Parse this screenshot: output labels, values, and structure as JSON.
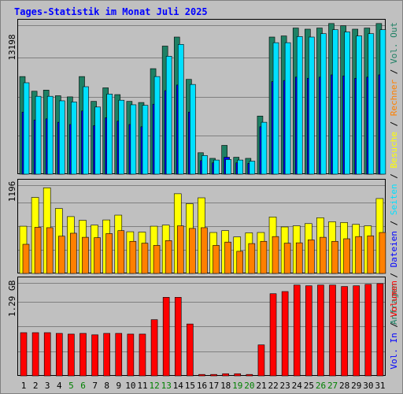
{
  "title": "Tages-Statistik im Monat Juli 2025",
  "colors": {
    "anfragen": "#1e8064",
    "dateien": "#0000ff",
    "seiten": "#00e0ff",
    "besuche": "#ffff00",
    "rechner": "#ff8000",
    "volumen": "#ff0000",
    "weekday": "#000000",
    "weekend": "#008000"
  },
  "chart_data": [
    {
      "type": "bar",
      "name": "requests",
      "ymax_label": "13198",
      "ymax": 13198,
      "legend": [
        "Anfragen",
        "Dateien",
        "Seiten"
      ],
      "categories": [
        "1",
        "2",
        "3",
        "4",
        "5",
        "6",
        "7",
        "8",
        "9",
        "10",
        "11",
        "12",
        "13",
        "14",
        "15",
        "16",
        "17",
        "18",
        "19",
        "20",
        "21",
        "22",
        "23",
        "24",
        "25",
        "26",
        "27",
        "28",
        "29",
        "30",
        "31"
      ],
      "series": [
        {
          "name": "Anfragen",
          "values": [
            8650,
            7350,
            7450,
            6950,
            6850,
            8650,
            6450,
            7650,
            7050,
            6450,
            6350,
            9350,
            11350,
            12150,
            8400,
            1900,
            1400,
            2550,
            1500,
            1400,
            5150,
            12150,
            12250,
            12950,
            12850,
            12950,
            13350,
            13150,
            12850,
            12950,
            13350
          ]
        },
        {
          "name": "Dateien",
          "values": [
            5500,
            4800,
            4900,
            4600,
            4400,
            5600,
            4300,
            5000,
            4700,
            4400,
            4200,
            6200,
            7400,
            7900,
            5500,
            1200,
            1000,
            1500,
            1000,
            950,
            4200,
            8200,
            8300,
            8600,
            8500,
            8600,
            8800,
            8700,
            8500,
            8600,
            8800
          ]
        },
        {
          "name": "Seiten",
          "values": [
            8100,
            6900,
            6900,
            6500,
            6400,
            7750,
            5950,
            7100,
            6550,
            6150,
            6100,
            8650,
            10450,
            11500,
            7950,
            1650,
            1250,
            1300,
            1250,
            1150,
            4600,
            11650,
            11650,
            12200,
            12150,
            12450,
            12800,
            12600,
            12250,
            12450,
            12800
          ]
        }
      ]
    },
    {
      "type": "bar",
      "name": "visits",
      "ymax_label": "1196",
      "ymax": 1196,
      "legend": [
        "Besuche",
        "Rechner",
        "Vol. Out"
      ],
      "categories": [
        "1",
        "2",
        "3",
        "4",
        "5",
        "6",
        "7",
        "8",
        "9",
        "10",
        "11",
        "12",
        "13",
        "14",
        "15",
        "16",
        "17",
        "18",
        "19",
        "20",
        "21",
        "22",
        "23",
        "24",
        "25",
        "26",
        "27",
        "28",
        "29",
        "30",
        "31"
      ],
      "series": [
        {
          "name": "Besuche",
          "values": [
            640,
            1030,
            1160,
            880,
            770,
            720,
            655,
            725,
            790,
            565,
            560,
            640,
            655,
            1080,
            945,
            1025,
            555,
            580,
            495,
            550,
            555,
            765,
            630,
            645,
            675,
            755,
            700,
            690,
            665,
            645,
            1015
          ]
        },
        {
          "name": "Rechner",
          "values": [
            395,
            625,
            620,
            505,
            545,
            490,
            485,
            540,
            580,
            435,
            410,
            380,
            445,
            645,
            610,
            620,
            380,
            425,
            300,
            405,
            435,
            500,
            410,
            415,
            455,
            490,
            435,
            470,
            500,
            510,
            555
          ]
        }
      ]
    },
    {
      "type": "bar",
      "name": "volume",
      "ymax_label": "1.29 GB",
      "ymax": 1.29,
      "legend": [
        "Volumen",
        "Vol. In",
        "Vol. Out"
      ],
      "categories": [
        "1",
        "2",
        "3",
        "4",
        "5",
        "6",
        "7",
        "8",
        "9",
        "10",
        "11",
        "12",
        "13",
        "14",
        "15",
        "16",
        "17",
        "18",
        "19",
        "20",
        "21",
        "22",
        "23",
        "24",
        "25",
        "26",
        "27",
        "28",
        "29",
        "30",
        "31"
      ],
      "series": [
        {
          "name": "Volumen",
          "values": [
            0.6,
            0.6,
            0.6,
            0.59,
            0.58,
            0.59,
            0.57,
            0.59,
            0.59,
            0.58,
            0.58,
            0.78,
            1.09,
            1.09,
            0.72,
            0.02,
            0.02,
            0.03,
            0.03,
            0.02,
            0.43,
            1.14,
            1.17,
            1.26,
            1.25,
            1.26,
            1.26,
            1.24,
            1.25,
            1.27,
            1.28
          ]
        }
      ]
    }
  ],
  "weekend_days": [
    "5",
    "6",
    "12",
    "13",
    "19",
    "20",
    "26",
    "27"
  ],
  "right_legend": {
    "top": [
      {
        "text": "Anfragen",
        "color": "#1e8064"
      },
      {
        "text": " / ",
        "color": "#000000"
      },
      {
        "text": "Dateien",
        "color": "#0000ff"
      },
      {
        "text": " / ",
        "color": "#000000"
      },
      {
        "text": "Seiten",
        "color": "#00e0ff"
      },
      {
        "text": " / ",
        "color": "#000000"
      },
      {
        "text": "Besuche",
        "color": "#ffff00"
      },
      {
        "text": " / ",
        "color": "#000000"
      },
      {
        "text": "Rechner",
        "color": "#ff8000"
      },
      {
        "text": " / ",
        "color": "#000000"
      },
      {
        "text": "Vol. Out",
        "color": "#1e8064"
      }
    ],
    "bottom": [
      {
        "text": "Vol. In",
        "color": "#0000ff"
      },
      {
        "text": " / ",
        "color": "#000000"
      },
      {
        "text": "Volumen",
        "color": "#ff0000"
      }
    ]
  }
}
